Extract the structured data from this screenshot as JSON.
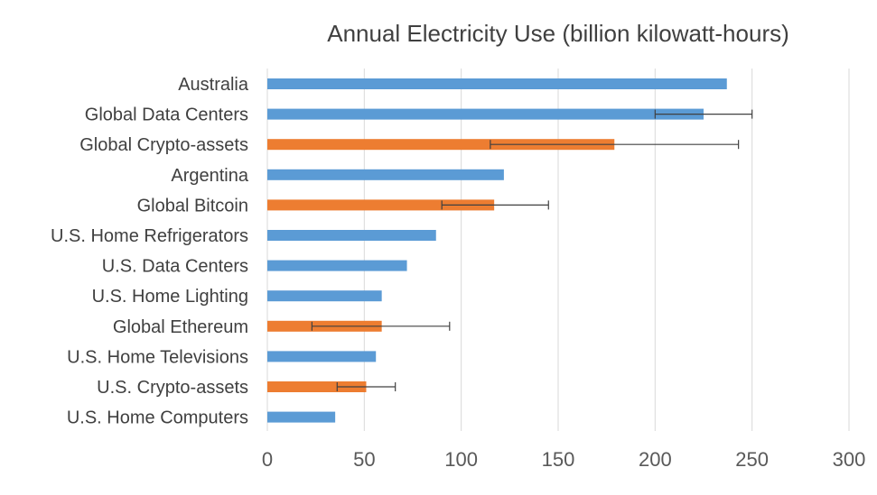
{
  "chart_data": {
    "type": "bar",
    "orientation": "horizontal",
    "title": "Annual Electricity Use (billion kilowatt-hours)",
    "xlabel": "",
    "ylabel": "",
    "xlim": [
      0,
      300
    ],
    "ticks": [
      0,
      50,
      100,
      150,
      200,
      250,
      300
    ],
    "grid": true,
    "colors": {
      "country_or_sector": "#5b9bd5",
      "crypto": "#ed7d31"
    },
    "categories": [
      {
        "label": "Australia",
        "value": 237,
        "group": "country_or_sector"
      },
      {
        "label": "Global Data Centers",
        "value": 225,
        "group": "country_or_sector",
        "error": [
          200,
          250
        ]
      },
      {
        "label": "Global Crypto-assets",
        "value": 179,
        "group": "crypto",
        "error": [
          115,
          243
        ]
      },
      {
        "label": "Argentina",
        "value": 122,
        "group": "country_or_sector"
      },
      {
        "label": "Global Bitcoin",
        "value": 117,
        "group": "crypto",
        "error": [
          90,
          145
        ]
      },
      {
        "label": "U.S. Home Refrigerators",
        "value": 87,
        "group": "country_or_sector"
      },
      {
        "label": "U.S. Data Centers",
        "value": 72,
        "group": "country_or_sector"
      },
      {
        "label": "U.S. Home Lighting",
        "value": 59,
        "group": "country_or_sector"
      },
      {
        "label": "Global Ethereum",
        "value": 59,
        "group": "crypto",
        "error": [
          23,
          94
        ]
      },
      {
        "label": "U.S. Home Televisions",
        "value": 56,
        "group": "country_or_sector"
      },
      {
        "label": "U.S. Crypto-assets",
        "value": 51,
        "group": "crypto",
        "error": [
          36,
          66
        ]
      },
      {
        "label": "U.S. Home Computers",
        "value": 35,
        "group": "country_or_sector"
      }
    ]
  }
}
